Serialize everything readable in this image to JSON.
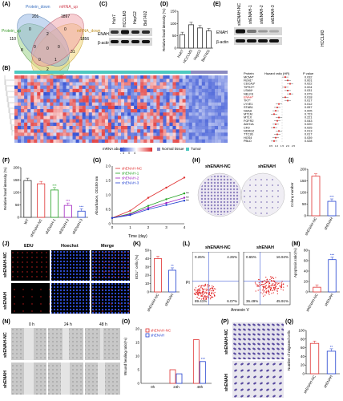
{
  "panel_letters": [
    "(A)",
    "(B)",
    "(C)",
    "(D)",
    "(E)",
    "(F)",
    "(G)",
    "(H)",
    "(I)",
    "(J)",
    "(K)",
    "(L)",
    "(M)",
    "(N)",
    "(O)",
    "(P)",
    "(Q)"
  ],
  "venn": {
    "labels": {
      "protein_down": "Protein_down",
      "mrna_up": "mRNA_up",
      "protein_up": "Protein_up",
      "mrna_down": "mRNA_down"
    },
    "numbers": [
      "201",
      "1897",
      "110",
      "0",
      "1856",
      "2",
      "8",
      "0",
      "0",
      "0",
      "0",
      "31",
      "0",
      "1",
      "2"
    ],
    "colors": {
      "protein_down": "#8fb4e3",
      "mrna_up": "#f0a0a8",
      "protein_up": "#9ed48a",
      "mrna_down": "#f3d57a"
    }
  },
  "blot_c": {
    "columns": [
      "Huh7",
      "HCCLM3",
      "HepG2",
      "Bel7402"
    ],
    "rows": [
      "ENAH",
      "β-actin"
    ]
  },
  "chart_d": {
    "type": "bar",
    "categories": [
      "Huh7",
      "HCCLM3",
      "HepG2",
      "Bel7402"
    ],
    "values": [
      55,
      95,
      82,
      70
    ],
    "ylabel": "Relative band intensity (%)",
    "ylim": [
      0,
      150
    ],
    "yticks": [
      "0",
      "50",
      "100",
      "150"
    ]
  },
  "blot_e": {
    "columns": [
      "shENAH-NC",
      "shENAH-1",
      "shENAH-2",
      "shENAH-3"
    ],
    "rows": [
      "ENAH",
      "β-actin"
    ],
    "cell_line": "HCCLM3"
  },
  "heatmap_b": {
    "legend_title": "mRNA abundance",
    "scale": [
      "-4",
      "-2",
      "0",
      "2",
      "4"
    ],
    "normal": "Normal tissue",
    "tumor": "Tumor",
    "forest_header": [
      "Protein",
      "Hazard ratio (HR)",
      "P value"
    ],
    "proteins": [
      "MCM4*",
      "FEN1*",
      "CDCA3*",
      "TIPS2**",
      "LSM4*",
      "NELFE",
      "ENAH*",
      "TKT*",
      "LYVE1",
      "STAB1",
      "NAAA",
      "MT1M",
      "MT1X",
      "FGFR2",
      "ADH1A",
      "CFD",
      "NDRG2",
      "TTC36",
      "HGS4",
      "PBLD"
    ],
    "pvalues": [
      "0.032",
      "0.001",
      "0.022",
      "0.004",
      "0.031",
      "0.079",
      "0.018",
      "0.017",
      "0.012",
      "0.057",
      "0.005",
      "0.723",
      "0.221",
      "0.043",
      "0.020",
      "0.025",
      "0.013",
      "0.017",
      "0.039",
      "0.028"
    ],
    "axis_ticks": [
      "0.5",
      "1.0",
      "1.5",
      "2.0",
      "2.5"
    ]
  },
  "chart_f": {
    "type": "bar",
    "categories": [
      "WT",
      "shENAH-NC",
      "shENAH-1",
      "shENAH-2",
      "shENAH-3"
    ],
    "values": [
      148,
      135,
      110,
      48,
      25
    ],
    "ylabel": "Relative band intensity (%)",
    "ylim": [
      0,
      200
    ],
    "yticks": [
      "0",
      "50",
      "100",
      "150",
      "200"
    ],
    "colors": [
      "#333333",
      "#e03030",
      "#20a020",
      "#a020c0",
      "#2040d0"
    ],
    "sig": [
      "",
      "",
      "***",
      "***",
      "***"
    ]
  },
  "chart_g": {
    "type": "line",
    "xlabel": "Time (day)",
    "ylabel": "Absorbance, OD450 nm",
    "x": [
      0,
      1,
      2,
      3,
      4
    ],
    "xticks": [
      "0",
      "1",
      "2",
      "3",
      "4"
    ],
    "yticks": [
      "0",
      "0.5",
      "1.0",
      "1.5",
      "2.0"
    ],
    "ylim": [
      0,
      2.0
    ],
    "series": [
      {
        "name": "shENAH-NC",
        "color": "#e03030",
        "values": [
          0.2,
          0.45,
          0.9,
          1.25,
          1.6
        ]
      },
      {
        "name": "shENAH-1",
        "color": "#20a020",
        "values": [
          0.2,
          0.35,
          0.62,
          0.85,
          1.05
        ]
      },
      {
        "name": "shENAH-2",
        "color": "#a020c0",
        "values": [
          0.2,
          0.33,
          0.55,
          0.72,
          0.9
        ]
      },
      {
        "name": "shENAH-3",
        "color": "#2040d0",
        "values": [
          0.2,
          0.3,
          0.5,
          0.65,
          0.8
        ]
      }
    ],
    "sig": "***"
  },
  "colony_h": {
    "labels": [
      "shENAH-NC",
      "shENAH"
    ]
  },
  "chart_i": {
    "type": "bar",
    "categories": [
      "shENAH-NC",
      "shENAH"
    ],
    "values": [
      170,
      62
    ],
    "ylabel": "Colony number",
    "ylim": [
      0,
      200
    ],
    "yticks": [
      "0",
      "50",
      "100",
      "150",
      "200"
    ],
    "colors": [
      "#e03030",
      "#2040d0"
    ],
    "sig": "***"
  },
  "fluor_j": {
    "columns": [
      "EDU",
      "Hoechst",
      "Merge"
    ],
    "rows": [
      "shENAH-NC",
      "shENAH"
    ]
  },
  "chart_k": {
    "type": "bar",
    "categories": [
      "shENAH-NC",
      "shENAH"
    ],
    "values": [
      40,
      26
    ],
    "ylabel": "EDU⁺ cells (%)",
    "ylim": [
      0,
      50
    ],
    "yticks": [
      "0",
      "10",
      "20",
      "30",
      "40",
      "50"
    ],
    "colors": [
      "#e03030",
      "#2040d0"
    ],
    "sig": "**"
  },
  "flow_l": {
    "plots": [
      {
        "title": "shENAH-NC",
        "q": [
          "0.26%",
          "4.26%",
          "89.41%",
          "6.07%"
        ]
      },
      {
        "title": "shENAH",
        "q": [
          "0.65%",
          "16.94%",
          "36.49%",
          "45.91%"
        ]
      }
    ],
    "xlabel": "Annexin V",
    "ylabel": "PI"
  },
  "chart_m": {
    "type": "bar",
    "categories": [
      "shENAH-NC",
      "shENAH"
    ],
    "values": [
      9,
      62
    ],
    "ylabel": "Apoptosis ratio(%)",
    "ylim": [
      0,
      80
    ],
    "yticks": [
      "0",
      "20",
      "40",
      "60",
      "80"
    ],
    "colors": [
      "#e03030",
      "#2040d0"
    ],
    "sig": "***"
  },
  "wound_n": {
    "columns": [
      "0 h",
      "24 h",
      "48 h"
    ],
    "rows": [
      "shENAH-NC",
      "shENAH"
    ]
  },
  "chart_o": {
    "type": "bar",
    "categories": [
      "0h",
      "24h",
      "48h"
    ],
    "series": [
      {
        "name": "shENAH-NC",
        "color": "#e03030",
        "values": [
          0,
          5,
          16
        ]
      },
      {
        "name": "shENAH",
        "color": "#2040d0",
        "values": [
          0,
          3.5,
          8
        ]
      }
    ],
    "ylabel": "Wound healing ratio(%)",
    "ylim": [
      0,
      20
    ],
    "yticks": [
      "0",
      "5",
      "10",
      "15",
      "20"
    ],
    "sig": [
      "",
      "",
      "***"
    ]
  },
  "migration_p": {
    "rows": [
      "shENAH-NC",
      "shENAH"
    ]
  },
  "chart_q": {
    "type": "bar",
    "categories": [
      "shENAH-NC",
      "shENAH"
    ],
    "values": [
      70,
      52
    ],
    "ylabel": "Number of migrated cells",
    "ylim": [
      0,
      100
    ],
    "yticks": [
      "0",
      "20",
      "40",
      "60",
      "80",
      "100"
    ],
    "colors": [
      "#e03030",
      "#2040d0"
    ],
    "sig": "**"
  }
}
